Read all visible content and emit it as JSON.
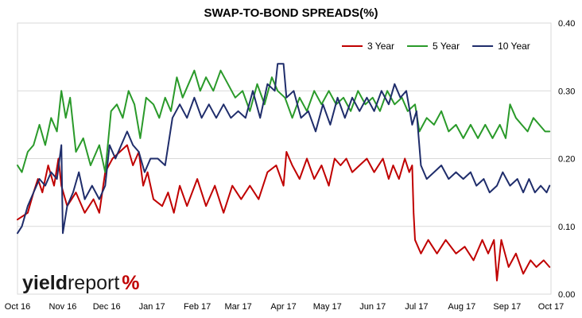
{
  "chart_data": {
    "type": "line",
    "title": "SWAP-TO-BOND SPREADS(%)",
    "xlabel": "",
    "ylabel": "",
    "ylim": [
      0,
      0.4
    ],
    "y_ticks": [
      "0.00",
      "0.10",
      "0.20",
      "0.30",
      "0.40"
    ],
    "y_tick_values": [
      0,
      0.1,
      0.2,
      0.3,
      0.4
    ],
    "x_ticks": [
      "Oct 16",
      "Nov 16",
      "Dec 16",
      "Jan 17",
      "Feb 17",
      "Mar 17",
      "Apr 17",
      "May 17",
      "Jun 17",
      "Jul 17",
      "Aug 17",
      "Sep 17",
      "Oct 17"
    ],
    "x_tick_dates": [
      "2016-10-01",
      "2016-11-01",
      "2016-12-01",
      "2017-01-01",
      "2017-02-01",
      "2017-03-01",
      "2017-04-01",
      "2017-05-01",
      "2017-06-01",
      "2017-07-01",
      "2017-08-01",
      "2017-09-01",
      "2017-10-01"
    ],
    "grid": "horizontal",
    "y_axis_position": "right",
    "legend_position": "top-right",
    "series": [
      {
        "name": "3 Year",
        "color": "#c00000",
        "points": [
          [
            "2016-10-01",
            0.11
          ],
          [
            "2016-10-08",
            0.12
          ],
          [
            "2016-10-12",
            0.15
          ],
          [
            "2016-10-15",
            0.17
          ],
          [
            "2016-10-18",
            0.15
          ],
          [
            "2016-10-22",
            0.19
          ],
          [
            "2016-10-26",
            0.16
          ],
          [
            "2016-10-29",
            0.2
          ],
          [
            "2016-10-31",
            0.16
          ],
          [
            "2016-11-04",
            0.13
          ],
          [
            "2016-11-10",
            0.15
          ],
          [
            "2016-11-16",
            0.12
          ],
          [
            "2016-11-22",
            0.14
          ],
          [
            "2016-11-26",
            0.12
          ],
          [
            "2016-11-30",
            0.18
          ],
          [
            "2016-12-05",
            0.2
          ],
          [
            "2016-12-10",
            0.21
          ],
          [
            "2016-12-15",
            0.22
          ],
          [
            "2016-12-19",
            0.19
          ],
          [
            "2016-12-23",
            0.21
          ],
          [
            "2016-12-26",
            0.16
          ],
          [
            "2016-12-29",
            0.18
          ],
          [
            "2017-01-02",
            0.14
          ],
          [
            "2017-01-08",
            0.13
          ],
          [
            "2017-01-12",
            0.15
          ],
          [
            "2017-01-16",
            0.12
          ],
          [
            "2017-01-20",
            0.16
          ],
          [
            "2017-01-25",
            0.13
          ],
          [
            "2017-02-01",
            0.17
          ],
          [
            "2017-02-07",
            0.13
          ],
          [
            "2017-02-13",
            0.16
          ],
          [
            "2017-02-19",
            0.12
          ],
          [
            "2017-02-25",
            0.16
          ],
          [
            "2017-03-03",
            0.14
          ],
          [
            "2017-03-09",
            0.16
          ],
          [
            "2017-03-15",
            0.14
          ],
          [
            "2017-03-21",
            0.18
          ],
          [
            "2017-03-27",
            0.19
          ],
          [
            "2017-04-01",
            0.16
          ],
          [
            "2017-04-03",
            0.21
          ],
          [
            "2017-04-07",
            0.19
          ],
          [
            "2017-04-12",
            0.17
          ],
          [
            "2017-04-17",
            0.2
          ],
          [
            "2017-04-22",
            0.17
          ],
          [
            "2017-04-27",
            0.19
          ],
          [
            "2017-05-02",
            0.16
          ],
          [
            "2017-05-06",
            0.2
          ],
          [
            "2017-05-10",
            0.19
          ],
          [
            "2017-05-14",
            0.2
          ],
          [
            "2017-05-18",
            0.18
          ],
          [
            "2017-05-23",
            0.19
          ],
          [
            "2017-05-28",
            0.2
          ],
          [
            "2017-06-02",
            0.18
          ],
          [
            "2017-06-08",
            0.2
          ],
          [
            "2017-06-12",
            0.17
          ],
          [
            "2017-06-15",
            0.19
          ],
          [
            "2017-06-19",
            0.17
          ],
          [
            "2017-06-23",
            0.2
          ],
          [
            "2017-06-26",
            0.18
          ],
          [
            "2017-06-28",
            0.19
          ],
          [
            "2017-06-29",
            0.12
          ],
          [
            "2017-06-30",
            0.08
          ],
          [
            "2017-07-04",
            0.06
          ],
          [
            "2017-07-09",
            0.08
          ],
          [
            "2017-07-15",
            0.06
          ],
          [
            "2017-07-21",
            0.08
          ],
          [
            "2017-07-28",
            0.06
          ],
          [
            "2017-08-03",
            0.07
          ],
          [
            "2017-08-09",
            0.05
          ],
          [
            "2017-08-15",
            0.08
          ],
          [
            "2017-08-19",
            0.06
          ],
          [
            "2017-08-23",
            0.08
          ],
          [
            "2017-08-25",
            0.02
          ],
          [
            "2017-08-28",
            0.08
          ],
          [
            "2017-09-02",
            0.04
          ],
          [
            "2017-09-07",
            0.06
          ],
          [
            "2017-09-12",
            0.03
          ],
          [
            "2017-09-17",
            0.05
          ],
          [
            "2017-09-21",
            0.04
          ],
          [
            "2017-09-26",
            0.05
          ],
          [
            "2017-09-30",
            0.04
          ]
        ]
      },
      {
        "name": "5 Year",
        "color": "#2a9a2a",
        "points": [
          [
            "2016-10-01",
            0.19
          ],
          [
            "2016-10-04",
            0.18
          ],
          [
            "2016-10-08",
            0.21
          ],
          [
            "2016-10-12",
            0.22
          ],
          [
            "2016-10-16",
            0.25
          ],
          [
            "2016-10-20",
            0.22
          ],
          [
            "2016-10-24",
            0.26
          ],
          [
            "2016-10-28",
            0.24
          ],
          [
            "2016-10-31",
            0.3
          ],
          [
            "2016-11-03",
            0.26
          ],
          [
            "2016-11-06",
            0.29
          ],
          [
            "2016-11-10",
            0.21
          ],
          [
            "2016-11-15",
            0.23
          ],
          [
            "2016-11-20",
            0.19
          ],
          [
            "2016-11-26",
            0.22
          ],
          [
            "2016-11-30",
            0.18
          ],
          [
            "2016-12-04",
            0.27
          ],
          [
            "2016-12-08",
            0.28
          ],
          [
            "2016-12-12",
            0.26
          ],
          [
            "2016-12-16",
            0.3
          ],
          [
            "2016-12-20",
            0.28
          ],
          [
            "2016-12-24",
            0.23
          ],
          [
            "2016-12-28",
            0.29
          ],
          [
            "2017-01-02",
            0.28
          ],
          [
            "2017-01-06",
            0.26
          ],
          [
            "2017-01-10",
            0.29
          ],
          [
            "2017-01-14",
            0.27
          ],
          [
            "2017-01-18",
            0.32
          ],
          [
            "2017-01-22",
            0.29
          ],
          [
            "2017-01-26",
            0.31
          ],
          [
            "2017-01-30",
            0.33
          ],
          [
            "2017-02-03",
            0.3
          ],
          [
            "2017-02-07",
            0.32
          ],
          [
            "2017-02-12",
            0.3
          ],
          [
            "2017-02-17",
            0.33
          ],
          [
            "2017-02-22",
            0.31
          ],
          [
            "2017-02-27",
            0.29
          ],
          [
            "2017-03-04",
            0.3
          ],
          [
            "2017-03-09",
            0.27
          ],
          [
            "2017-03-14",
            0.31
          ],
          [
            "2017-03-19",
            0.28
          ],
          [
            "2017-03-24",
            0.32
          ],
          [
            "2017-03-28",
            0.3
          ],
          [
            "2017-04-02",
            0.29
          ],
          [
            "2017-04-07",
            0.26
          ],
          [
            "2017-04-12",
            0.29
          ],
          [
            "2017-04-17",
            0.27
          ],
          [
            "2017-04-22",
            0.3
          ],
          [
            "2017-04-27",
            0.28
          ],
          [
            "2017-05-02",
            0.3
          ],
          [
            "2017-05-07",
            0.28
          ],
          [
            "2017-05-12",
            0.29
          ],
          [
            "2017-05-17",
            0.27
          ],
          [
            "2017-05-22",
            0.3
          ],
          [
            "2017-05-27",
            0.28
          ],
          [
            "2017-06-01",
            0.29
          ],
          [
            "2017-06-06",
            0.27
          ],
          [
            "2017-06-11",
            0.3
          ],
          [
            "2017-06-16",
            0.28
          ],
          [
            "2017-06-21",
            0.29
          ],
          [
            "2017-06-25",
            0.27
          ],
          [
            "2017-06-30",
            0.28
          ],
          [
            "2017-07-03",
            0.24
          ],
          [
            "2017-07-08",
            0.26
          ],
          [
            "2017-07-13",
            0.25
          ],
          [
            "2017-07-18",
            0.27
          ],
          [
            "2017-07-23",
            0.24
          ],
          [
            "2017-07-28",
            0.25
          ],
          [
            "2017-08-02",
            0.23
          ],
          [
            "2017-08-07",
            0.25
          ],
          [
            "2017-08-12",
            0.23
          ],
          [
            "2017-08-17",
            0.25
          ],
          [
            "2017-08-22",
            0.23
          ],
          [
            "2017-08-27",
            0.25
          ],
          [
            "2017-08-31",
            0.23
          ],
          [
            "2017-09-03",
            0.28
          ],
          [
            "2017-09-07",
            0.26
          ],
          [
            "2017-09-11",
            0.25
          ],
          [
            "2017-09-15",
            0.24
          ],
          [
            "2017-09-19",
            0.26
          ],
          [
            "2017-09-23",
            0.25
          ],
          [
            "2017-09-27",
            0.24
          ],
          [
            "2017-09-30",
            0.24
          ]
        ]
      },
      {
        "name": "10 Year",
        "color": "#1f2d6b",
        "points": [
          [
            "2016-10-01",
            0.09
          ],
          [
            "2016-10-04",
            0.1
          ],
          [
            "2016-10-08",
            0.13
          ],
          [
            "2016-10-12",
            0.15
          ],
          [
            "2016-10-16",
            0.17
          ],
          [
            "2016-10-20",
            0.16
          ],
          [
            "2016-10-24",
            0.18
          ],
          [
            "2016-10-28",
            0.17
          ],
          [
            "2016-10-31",
            0.22
          ],
          [
            "2016-11-01",
            0.09
          ],
          [
            "2016-11-04",
            0.13
          ],
          [
            "2016-11-08",
            0.15
          ],
          [
            "2016-11-12",
            0.18
          ],
          [
            "2016-11-16",
            0.14
          ],
          [
            "2016-11-21",
            0.16
          ],
          [
            "2016-11-26",
            0.14
          ],
          [
            "2016-11-30",
            0.16
          ],
          [
            "2016-12-03",
            0.22
          ],
          [
            "2016-12-07",
            0.2
          ],
          [
            "2016-12-11",
            0.22
          ],
          [
            "2016-12-15",
            0.24
          ],
          [
            "2016-12-19",
            0.22
          ],
          [
            "2016-12-23",
            0.21
          ],
          [
            "2016-12-27",
            0.18
          ],
          [
            "2016-12-31",
            0.2
          ],
          [
            "2017-01-05",
            0.2
          ],
          [
            "2017-01-10",
            0.19
          ],
          [
            "2017-01-15",
            0.26
          ],
          [
            "2017-01-20",
            0.28
          ],
          [
            "2017-01-25",
            0.26
          ],
          [
            "2017-01-30",
            0.29
          ],
          [
            "2017-02-04",
            0.26
          ],
          [
            "2017-02-09",
            0.28
          ],
          [
            "2017-02-14",
            0.26
          ],
          [
            "2017-02-19",
            0.28
          ],
          [
            "2017-02-24",
            0.26
          ],
          [
            "2017-03-01",
            0.27
          ],
          [
            "2017-03-06",
            0.26
          ],
          [
            "2017-03-11",
            0.3
          ],
          [
            "2017-03-16",
            0.26
          ],
          [
            "2017-03-21",
            0.31
          ],
          [
            "2017-03-26",
            0.3
          ],
          [
            "2017-03-28",
            0.34
          ],
          [
            "2017-04-01",
            0.34
          ],
          [
            "2017-04-03",
            0.29
          ],
          [
            "2017-04-08",
            0.3
          ],
          [
            "2017-04-13",
            0.26
          ],
          [
            "2017-04-18",
            0.27
          ],
          [
            "2017-04-23",
            0.24
          ],
          [
            "2017-04-28",
            0.28
          ],
          [
            "2017-05-03",
            0.25
          ],
          [
            "2017-05-08",
            0.29
          ],
          [
            "2017-05-13",
            0.26
          ],
          [
            "2017-05-18",
            0.29
          ],
          [
            "2017-05-23",
            0.27
          ],
          [
            "2017-05-28",
            0.29
          ],
          [
            "2017-06-02",
            0.27
          ],
          [
            "2017-06-07",
            0.3
          ],
          [
            "2017-06-12",
            0.28
          ],
          [
            "2017-06-16",
            0.31
          ],
          [
            "2017-06-20",
            0.29
          ],
          [
            "2017-06-24",
            0.3
          ],
          [
            "2017-06-28",
            0.25
          ],
          [
            "2017-07-01",
            0.27
          ],
          [
            "2017-07-04",
            0.19
          ],
          [
            "2017-07-08",
            0.17
          ],
          [
            "2017-07-13",
            0.18
          ],
          [
            "2017-07-18",
            0.19
          ],
          [
            "2017-07-23",
            0.17
          ],
          [
            "2017-07-28",
            0.18
          ],
          [
            "2017-08-02",
            0.17
          ],
          [
            "2017-08-07",
            0.18
          ],
          [
            "2017-08-11",
            0.16
          ],
          [
            "2017-08-16",
            0.17
          ],
          [
            "2017-08-20",
            0.15
          ],
          [
            "2017-08-25",
            0.16
          ],
          [
            "2017-08-29",
            0.18
          ],
          [
            "2017-09-03",
            0.16
          ],
          [
            "2017-09-08",
            0.17
          ],
          [
            "2017-09-12",
            0.15
          ],
          [
            "2017-09-16",
            0.17
          ],
          [
            "2017-09-20",
            0.15
          ],
          [
            "2017-09-24",
            0.16
          ],
          [
            "2017-09-28",
            0.15
          ],
          [
            "2017-09-30",
            0.16
          ]
        ]
      }
    ]
  },
  "branding": {
    "logo_part1": "yield",
    "logo_part2": "report",
    "logo_symbol": "%",
    "logo_color_dark": "#1a1a1a",
    "logo_color_accent": "#c00000",
    "logo_color_green": "#2a9a2a"
  }
}
